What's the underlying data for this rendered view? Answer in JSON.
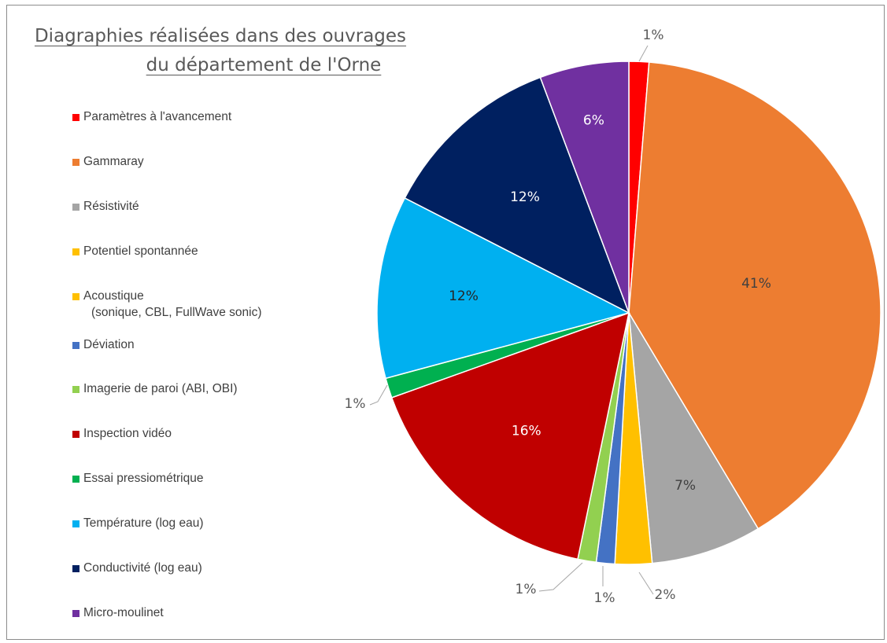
{
  "title": {
    "line1": "Diagraphies réalisées dans des ouvrages",
    "line2": "du département de l'Orne"
  },
  "chart_data": {
    "type": "pie",
    "title": "Diagraphies réalisées dans des ouvrages du département de l'Orne",
    "start_angle_deg": 0,
    "direction": "clockwise",
    "legend_position": "left",
    "slices": [
      {
        "name": "Paramètres à l'avancement",
        "value": 1.3,
        "label": "1%",
        "color": "#ff0000",
        "label_color": "#595959",
        "label_outside": true
      },
      {
        "name": "Gammaray",
        "value": 40.7,
        "label": "41%",
        "color": "#ed7d31",
        "label_color": "#404040",
        "label_outside": false
      },
      {
        "name": "Résistivité",
        "value": 7.2,
        "label": "7%",
        "color": "#a5a5a5",
        "label_color": "#404040",
        "label_outside": false
      },
      {
        "name": "Potentiel spontannée",
        "value": 2.4,
        "label": "2%",
        "color": "#ffc000",
        "label_color": "#595959",
        "label_outside": true
      },
      {
        "name": "Acoustique",
        "name_line2": "(sonique, CBL, FullWave sonic)",
        "value": 0.0,
        "label": "",
        "color": "#ffc000",
        "label_color": "#595959",
        "label_outside": true
      },
      {
        "name": "Déviation",
        "value": 1.2,
        "label": "1%",
        "color": "#4472c4",
        "label_color": "#595959",
        "label_outside": true
      },
      {
        "name": "Imagerie de paroi (ABI, OBI)",
        "value": 1.2,
        "label": "1%",
        "color": "#92d050",
        "label_color": "#595959",
        "label_outside": true
      },
      {
        "name": "Inspection vidéo",
        "value": 16.5,
        "label": "16%",
        "color": "#c00000",
        "label_color": "#ffffff",
        "label_outside": false
      },
      {
        "name": "Essai pressiométrique",
        "value": 1.3,
        "label": "1%",
        "color": "#00b050",
        "label_color": "#595959",
        "label_outside": true
      },
      {
        "name": "Température (log eau)",
        "value": 11.9,
        "label": "12%",
        "color": "#00b0f0",
        "label_color": "#262626",
        "label_outside": false
      },
      {
        "name": "Conductivité (log eau)",
        "value": 11.9,
        "label": "12%",
        "color": "#002060",
        "label_color": "#ffffff",
        "label_outside": false
      },
      {
        "name": "Micro-moulinet",
        "value": 5.8,
        "label": "6%",
        "color": "#7030a0",
        "label_color": "#ffffff",
        "label_outside": false
      }
    ]
  }
}
